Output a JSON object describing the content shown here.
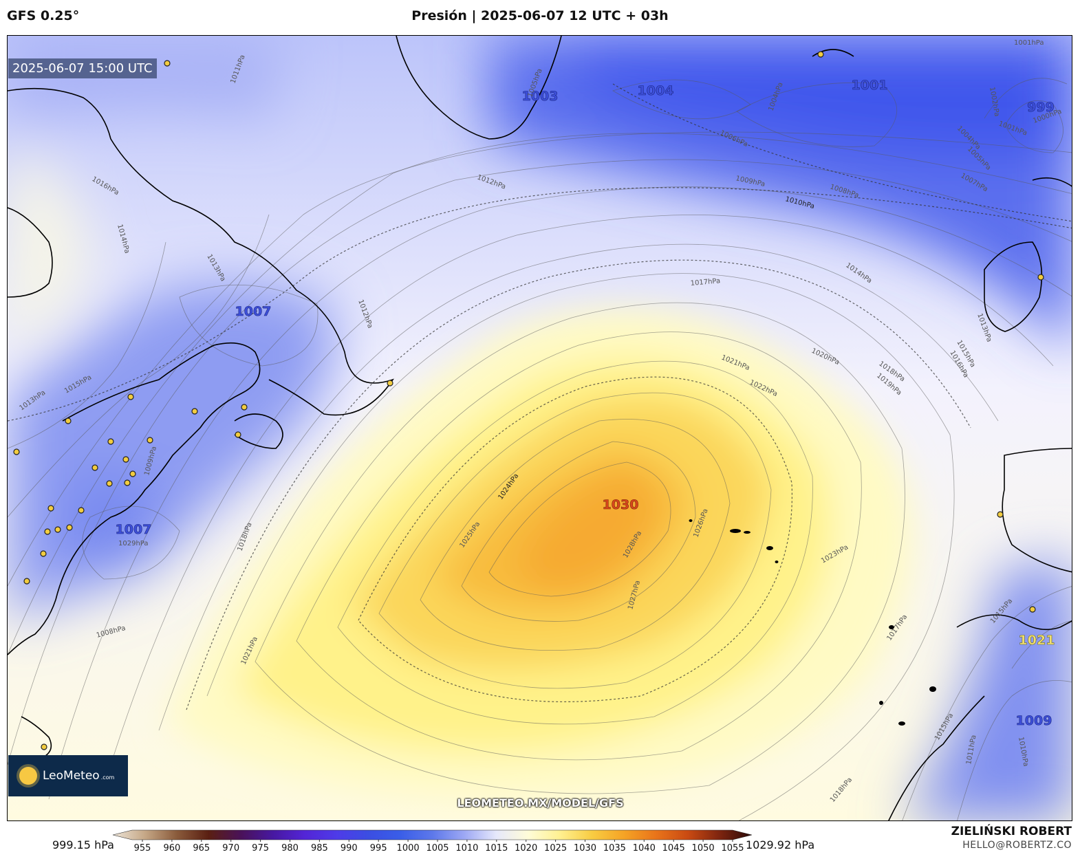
{
  "header": {
    "model": "GFS 0.25°",
    "title": "Presión | 2025-06-07 12 UTC + 03h"
  },
  "map": {
    "valid_time": "2025-06-07 15:00 UTC",
    "centers": [
      {
        "id": "h-1030",
        "text": "1030",
        "kind": "high"
      },
      {
        "id": "h-1021",
        "text": "1021",
        "kind": "high"
      },
      {
        "id": "l-1003",
        "text": "1003",
        "kind": "low"
      },
      {
        "id": "l-1004",
        "text": "1004",
        "kind": "low"
      },
      {
        "id": "l-1001",
        "text": "1001",
        "kind": "low"
      },
      {
        "id": "l-999",
        "text": "999",
        "kind": "low"
      },
      {
        "id": "l-1007a",
        "text": "1007",
        "kind": "low"
      },
      {
        "id": "l-1007b",
        "text": "1007",
        "kind": "low"
      },
      {
        "id": "l-1009",
        "text": "1009",
        "kind": "low"
      }
    ],
    "isobar_labels": [
      "1001hPa",
      "1002hPa",
      "1004hPa",
      "1004hPa",
      "1005hPa",
      "1006hPa",
      "1007hPa",
      "1008hPa",
      "1009hPa",
      "1010hPa",
      "1012hPa",
      "1013hPa",
      "1014hPa",
      "1015hPa",
      "1016hPa",
      "1017hPa",
      "1018hPa",
      "1019hPa",
      "1020hPa",
      "1021hPa",
      "1022hPa",
      "1023hPa",
      "1024hPa",
      "1025hPa",
      "1026hPa",
      "1027hPa",
      "1028hPa",
      "1029hPa",
      "1008hPa",
      "1015hPa",
      "1013hPa",
      "1014hPa",
      "1011hPa",
      "1016hPa",
      "1013hPa",
      "1009hPa",
      "1012hPa",
      "1018hPa",
      "1021hPa",
      "1015hPa",
      "1018hPa",
      "1017hPa",
      "1015hPa",
      "1010hPa",
      "1011hPa",
      "1005hPa",
      "1000hPa",
      "1001hPa"
    ],
    "logo": {
      "name": "LeoMeteo",
      "domain": ".com"
    },
    "url": "LEOMETEO.MX/MODEL/GFS"
  },
  "colorbar": {
    "min_label": "999.15 hPa",
    "max_label": "1029.92 hPa",
    "ticks": [
      "955",
      "960",
      "965",
      "970",
      "975",
      "980",
      "985",
      "990",
      "995",
      "1000",
      "1005",
      "1010",
      "1015",
      "1020",
      "1025",
      "1030",
      "1035",
      "1040",
      "1045",
      "1050",
      "1055"
    ],
    "colors": [
      "#ece4d8",
      "#c6a887",
      "#8a5b3b",
      "#5a1f12",
      "#4a1258",
      "#4718a0",
      "#5325d6",
      "#4e3be8",
      "#3b4ee2",
      "#3a5ee8",
      "#5d78ea",
      "#9da8f4",
      "#e6e8fb",
      "#fffcd8",
      "#fff090",
      "#f8cc42",
      "#f5a325",
      "#e9741a",
      "#c94a12",
      "#7d240f",
      "#2a0a08"
    ]
  },
  "footer": {
    "author": "ZIELIŃSKI ROBERT",
    "email": "HELLO@ROBERTZ.CO"
  }
}
